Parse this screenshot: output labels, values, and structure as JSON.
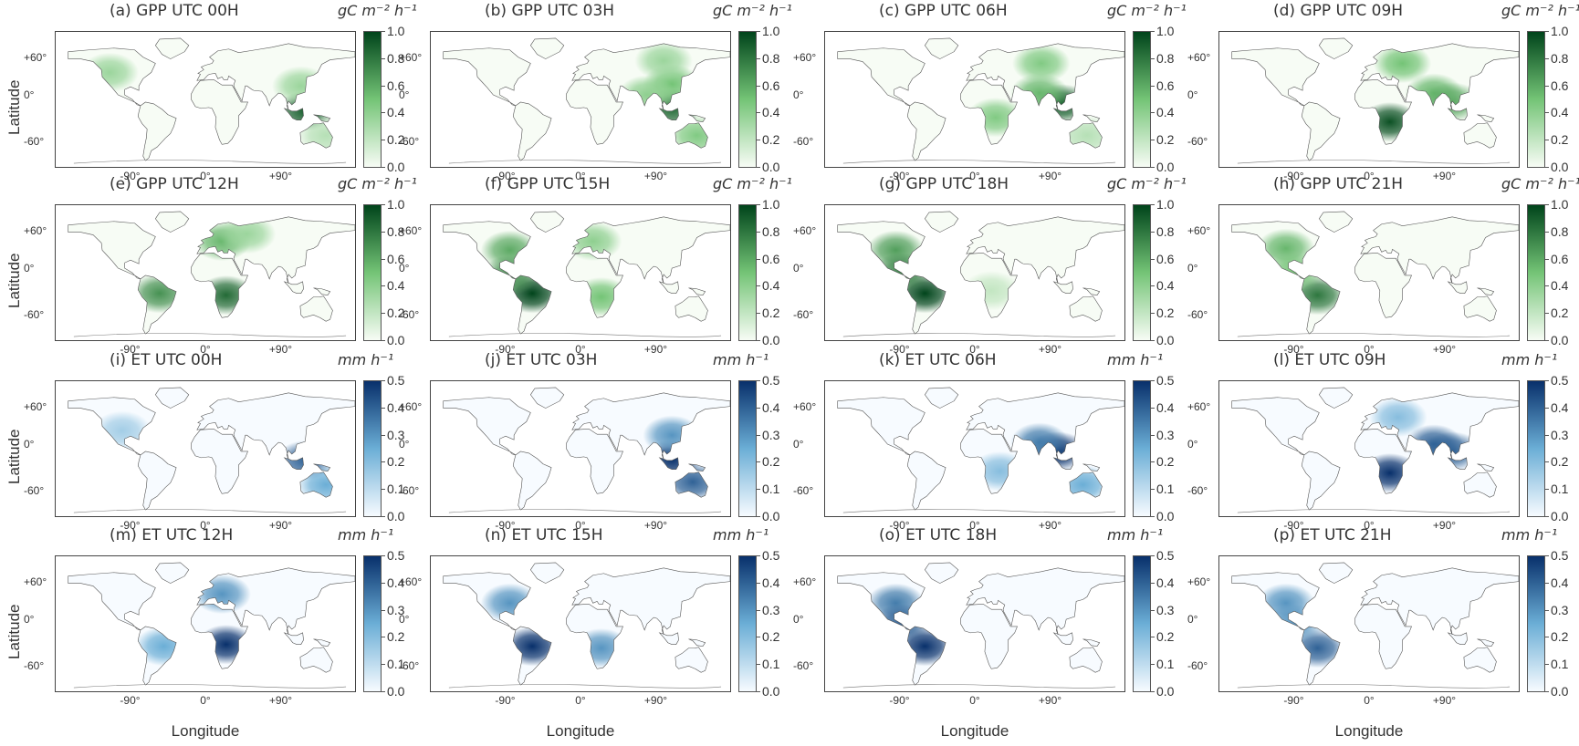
{
  "figure": {
    "ylabel": "Latitude",
    "xlabel": "Longitude",
    "lat_ticks": [
      "+60°",
      "0°",
      "-60°"
    ],
    "lon_ticks": [
      "-90°",
      "0°",
      "+90°"
    ]
  },
  "colormaps": {
    "gpp": {
      "name": "Greens",
      "low": "#f7fcf5",
      "mid": "#74c476",
      "high": "#00441b"
    },
    "et": {
      "name": "Blues",
      "low": "#f7fbff",
      "mid": "#6baed6",
      "high": "#08306b"
    }
  },
  "colorbars": {
    "gpp": {
      "unit": "gC m⁻² h⁻¹",
      "ticks": [
        "1.0",
        "0.8",
        "0.6",
        "0.4",
        "0.2",
        "0.0"
      ],
      "range": [
        0,
        1
      ]
    },
    "et": {
      "unit": "mm h⁻¹",
      "ticks": [
        "0.5",
        "0.4",
        "0.3",
        "0.2",
        "0.1",
        "0.0"
      ],
      "range": [
        0,
        0.5
      ]
    }
  },
  "panels": [
    {
      "title": "(a) GPP UTC 00H",
      "variable": "gpp",
      "hotspots": [
        {
          "region": "Southeast Asia / Maritime",
          "lon": 120,
          "lat": 2,
          "value": 0.9
        },
        {
          "region": "East Asia",
          "lon": 115,
          "lat": 30,
          "value": 0.35
        },
        {
          "region": "Australia east",
          "lon": 145,
          "lat": -25,
          "value": 0.25
        },
        {
          "region": "North America west",
          "lon": -115,
          "lat": 45,
          "value": 0.35
        }
      ]
    },
    {
      "title": "(b) GPP UTC 03H",
      "variable": "gpp",
      "hotspots": [
        {
          "region": "Southeast Asia / Maritime",
          "lon": 110,
          "lat": 5,
          "value": 0.85
        },
        {
          "region": "East Asia",
          "lon": 110,
          "lat": 32,
          "value": 0.5
        },
        {
          "region": "Siberia",
          "lon": 100,
          "lat": 58,
          "value": 0.35
        },
        {
          "region": "Australia",
          "lon": 140,
          "lat": -25,
          "value": 0.45
        },
        {
          "region": "India",
          "lon": 80,
          "lat": 20,
          "value": 0.4
        }
      ]
    },
    {
      "title": "(c) GPP UTC 06H",
      "variable": "gpp",
      "hotspots": [
        {
          "region": "Southeast Asia / Maritime",
          "lon": 105,
          "lat": 10,
          "value": 0.9
        },
        {
          "region": "India",
          "lon": 78,
          "lat": 22,
          "value": 0.55
        },
        {
          "region": "Central Asia / Siberia",
          "lon": 80,
          "lat": 55,
          "value": 0.45
        },
        {
          "region": "Central Africa",
          "lon": 25,
          "lat": -5,
          "value": 0.45
        },
        {
          "region": "Australia",
          "lon": 135,
          "lat": -25,
          "value": 0.25
        }
      ]
    },
    {
      "title": "(d) GPP UTC 09H",
      "variable": "gpp",
      "hotspots": [
        {
          "region": "Central / Southern Africa",
          "lon": 25,
          "lat": -10,
          "value": 0.95
        },
        {
          "region": "Europe / Russia",
          "lon": 40,
          "lat": 55,
          "value": 0.5
        },
        {
          "region": "India",
          "lon": 78,
          "lat": 22,
          "value": 0.55
        },
        {
          "region": "Southeast Asia",
          "lon": 100,
          "lat": 12,
          "value": 0.6
        }
      ]
    },
    {
      "title": "(e) GPP UTC 12H",
      "variable": "gpp",
      "hotspots": [
        {
          "region": "Southern Africa",
          "lon": 25,
          "lat": -10,
          "value": 0.85
        },
        {
          "region": "Europe",
          "lon": 20,
          "lat": 50,
          "value": 0.55
        },
        {
          "region": "Amazon",
          "lon": -55,
          "lat": -8,
          "value": 0.7
        },
        {
          "region": "Russia",
          "lon": 50,
          "lat": 58,
          "value": 0.35
        }
      ]
    },
    {
      "title": "(f) GPP UTC 15H",
      "variable": "gpp",
      "hotspots": [
        {
          "region": "Amazon",
          "lon": -58,
          "lat": -8,
          "value": 1.0
        },
        {
          "region": "Eastern North America",
          "lon": -85,
          "lat": 40,
          "value": 0.6
        },
        {
          "region": "Central America",
          "lon": -85,
          "lat": 12,
          "value": 0.7
        },
        {
          "region": "Southern Africa",
          "lon": 25,
          "lat": -12,
          "value": 0.5
        },
        {
          "region": "Europe",
          "lon": 15,
          "lat": 50,
          "value": 0.4
        }
      ]
    },
    {
      "title": "(g) GPP UTC 18H",
      "variable": "gpp",
      "hotspots": [
        {
          "region": "Amazon",
          "lon": -60,
          "lat": -8,
          "value": 1.0
        },
        {
          "region": "North America",
          "lon": -95,
          "lat": 40,
          "value": 0.65
        },
        {
          "region": "Central America",
          "lon": -88,
          "lat": 15,
          "value": 0.75
        },
        {
          "region": "Africa",
          "lon": 20,
          "lat": -5,
          "value": 0.2
        }
      ]
    },
    {
      "title": "(h) GPP UTC 21H",
      "variable": "gpp",
      "hotspots": [
        {
          "region": "Amazon",
          "lon": -62,
          "lat": -10,
          "value": 0.8
        },
        {
          "region": "North America",
          "lon": -100,
          "lat": 42,
          "value": 0.55
        },
        {
          "region": "Central America",
          "lon": -90,
          "lat": 15,
          "value": 0.5
        }
      ]
    },
    {
      "title": "(i) ET UTC 00H",
      "variable": "et",
      "hotspots": [
        {
          "region": "Southeast Asia / Maritime",
          "lon": 120,
          "lat": 2,
          "value": 0.4
        },
        {
          "region": "Australia east",
          "lon": 145,
          "lat": -25,
          "value": 0.25
        },
        {
          "region": "North America",
          "lon": -100,
          "lat": 35,
          "value": 0.15
        }
      ]
    },
    {
      "title": "(j) ET UTC 03H",
      "variable": "et",
      "hotspots": [
        {
          "region": "Southeast Asia / Maritime",
          "lon": 110,
          "lat": 3,
          "value": 0.5
        },
        {
          "region": "Australia",
          "lon": 135,
          "lat": -22,
          "value": 0.4
        },
        {
          "region": "East Asia",
          "lon": 110,
          "lat": 30,
          "value": 0.3
        }
      ]
    },
    {
      "title": "(k) ET UTC 06H",
      "variable": "et",
      "hotspots": [
        {
          "region": "Southeast Asia",
          "lon": 100,
          "lat": 12,
          "value": 0.5
        },
        {
          "region": "India",
          "lon": 78,
          "lat": 22,
          "value": 0.35
        },
        {
          "region": "Australia",
          "lon": 130,
          "lat": -25,
          "value": 0.25
        },
        {
          "region": "Africa",
          "lon": 30,
          "lat": -10,
          "value": 0.2
        }
      ]
    },
    {
      "title": "(l) ET UTC 09H",
      "variable": "et",
      "hotspots": [
        {
          "region": "Central / Southern Africa",
          "lon": 25,
          "lat": -12,
          "value": 0.5
        },
        {
          "region": "India",
          "lon": 78,
          "lat": 20,
          "value": 0.4
        },
        {
          "region": "Southeast Asia",
          "lon": 100,
          "lat": 12,
          "value": 0.4
        },
        {
          "region": "Europe",
          "lon": 35,
          "lat": 50,
          "value": 0.2
        }
      ]
    },
    {
      "title": "(m) ET UTC 12H",
      "variable": "et",
      "hotspots": [
        {
          "region": "Central / Southern Africa",
          "lon": 25,
          "lat": -8,
          "value": 0.5
        },
        {
          "region": "Europe",
          "lon": 20,
          "lat": 48,
          "value": 0.3
        },
        {
          "region": "Amazon",
          "lon": -50,
          "lat": -10,
          "value": 0.25
        }
      ]
    },
    {
      "title": "(n) ET UTC 15H",
      "variable": "et",
      "hotspots": [
        {
          "region": "Amazon",
          "lon": -58,
          "lat": -10,
          "value": 0.5
        },
        {
          "region": "Southern Africa",
          "lon": 25,
          "lat": -12,
          "value": 0.3
        },
        {
          "region": "Eastern North America",
          "lon": -85,
          "lat": 38,
          "value": 0.3
        }
      ]
    },
    {
      "title": "(o) ET UTC 18H",
      "variable": "et",
      "hotspots": [
        {
          "region": "Amazon",
          "lon": -60,
          "lat": -10,
          "value": 0.5
        },
        {
          "region": "North America",
          "lon": -95,
          "lat": 38,
          "value": 0.35
        },
        {
          "region": "Central America",
          "lon": -88,
          "lat": 15,
          "value": 0.4
        }
      ]
    },
    {
      "title": "(p) ET UTC 21H",
      "variable": "et",
      "hotspots": [
        {
          "region": "Amazon",
          "lon": -62,
          "lat": -12,
          "value": 0.4
        },
        {
          "region": "North America",
          "lon": -100,
          "lat": 38,
          "value": 0.3
        },
        {
          "region": "Central America",
          "lon": -90,
          "lat": 15,
          "value": 0.3
        }
      ]
    }
  ]
}
